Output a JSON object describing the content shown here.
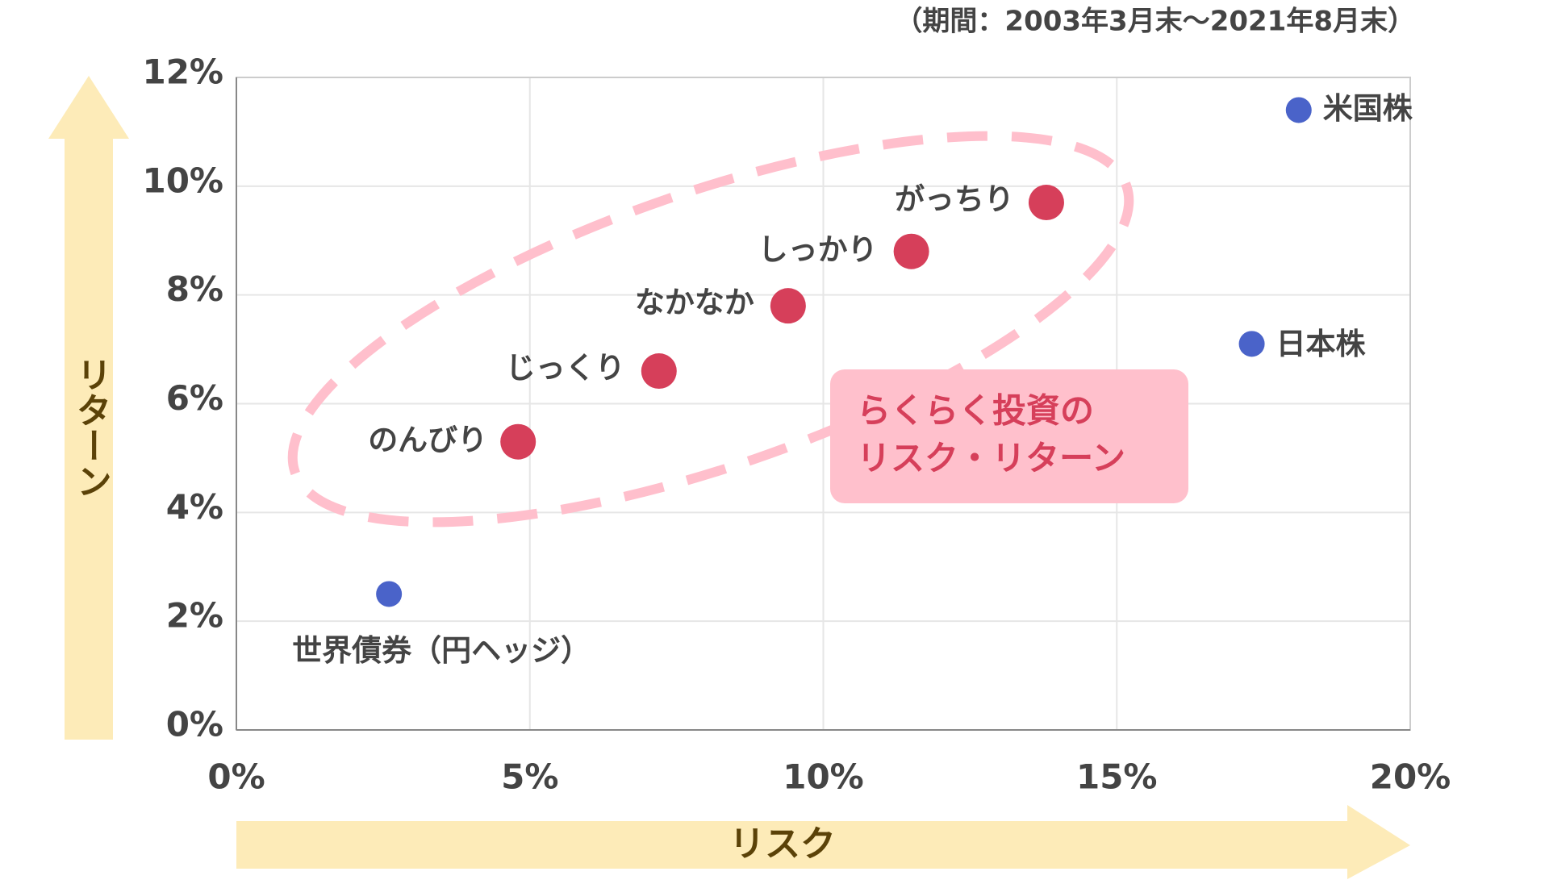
{
  "chart_data": {
    "type": "scatter",
    "note": "（期間：2003年3月末〜2021年8月末）",
    "xlabel": "リスク",
    "ylabel": "リターン",
    "annotation": [
      "らくらく投資の",
      "リスク・リターン"
    ],
    "xlim": [
      0,
      20
    ],
    "ylim": [
      0,
      12
    ],
    "xticks": [
      {
        "value": 0,
        "label": "0%"
      },
      {
        "value": 5,
        "label": "5%"
      },
      {
        "value": 10,
        "label": "10%"
      },
      {
        "value": 15,
        "label": "15%"
      },
      {
        "value": 20,
        "label": "20%"
      }
    ],
    "yticks": [
      {
        "value": 0,
        "label": "0%"
      },
      {
        "value": 2,
        "label": "2%"
      },
      {
        "value": 4,
        "label": "4%"
      },
      {
        "value": 6,
        "label": "6%"
      },
      {
        "value": 8,
        "label": "8%"
      },
      {
        "value": 10,
        "label": "10%"
      },
      {
        "value": 12,
        "label": "12%"
      }
    ],
    "grid": true,
    "points": [
      {
        "label": "米国株",
        "x": 18.1,
        "y": 11.4,
        "color": "#4a63c9"
      },
      {
        "label": "日本株",
        "x": 17.3,
        "y": 7.1,
        "color": "#4a63c9"
      },
      {
        "label": "世界債券（円ヘッジ）",
        "x": 2.6,
        "y": 2.5,
        "color": "#4a63c9"
      },
      {
        "label": "のんびり",
        "x": 4.8,
        "y": 5.3,
        "color": "#d63f5a"
      },
      {
        "label": "じっくり",
        "x": 7.2,
        "y": 6.6,
        "color": "#d63f5a"
      },
      {
        "label": "なかなか",
        "x": 9.4,
        "y": 7.8,
        "color": "#d63f5a"
      },
      {
        "label": "しっかり",
        "x": 11.5,
        "y": 8.8,
        "color": "#d63f5a"
      },
      {
        "label": "がっちり",
        "x": 13.8,
        "y": 9.7,
        "color": "#d63f5a"
      }
    ]
  }
}
